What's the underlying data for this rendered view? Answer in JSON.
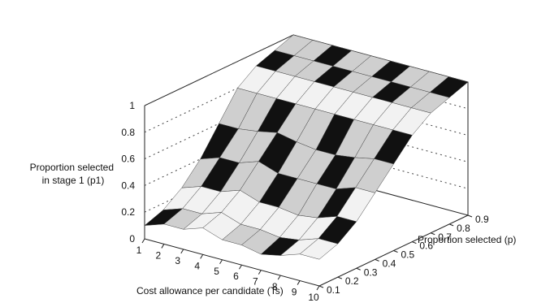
{
  "chart_data": {
    "type": "surface",
    "zlabel": "Proportion selected\nin stage 1 (p1)",
    "xlabel": "Cost allowance per candidate (Ts)",
    "ylabel": "Proportion selected (p)",
    "x_ticks": [
      "1",
      "2",
      "3",
      "4",
      "5",
      "6",
      "7",
      "8",
      "9",
      "10"
    ],
    "y_ticks": [
      "0.1",
      "0.2",
      "0.3",
      "0.4",
      "0.5",
      "0.6",
      "0.7",
      "0.8",
      "0.9"
    ],
    "z_ticks": [
      "0",
      "0.2",
      "0.4",
      "0.6",
      "0.8",
      "1"
    ],
    "x_range": [
      1,
      10
    ],
    "y_range": [
      0.1,
      0.9
    ],
    "z_range": [
      0,
      1
    ],
    "grid": "back-walls-dotted",
    "surface_note": "p1 rises from about 0.1-0.3 at low cost allowance and low p to 1.0 at high p",
    "series": [
      {
        "p": 0.1,
        "p1": [
          0.1,
          0.15,
          0.15,
          0.2,
          0.15,
          0.15,
          0.12,
          0.15,
          0.2,
          0.2
        ]
      },
      {
        "p": 0.2,
        "p1": [
          0.15,
          0.2,
          0.2,
          0.25,
          0.2,
          0.2,
          0.18,
          0.2,
          0.25,
          0.25
        ]
      },
      {
        "p": 0.3,
        "p1": [
          0.25,
          0.3,
          0.3,
          0.35,
          0.3,
          0.3,
          0.28,
          0.3,
          0.35,
          0.35
        ]
      },
      {
        "p": 0.4,
        "p1": [
          0.4,
          0.45,
          0.45,
          0.5,
          0.45,
          0.45,
          0.45,
          0.45,
          0.5,
          0.5
        ]
      },
      {
        "p": 0.5,
        "p1": [
          0.6,
          0.6,
          0.62,
          0.65,
          0.62,
          0.6,
          0.6,
          0.62,
          0.65,
          0.65
        ]
      },
      {
        "p": 0.6,
        "p1": [
          0.8,
          0.8,
          0.8,
          0.8,
          0.8,
          0.8,
          0.8,
          0.8,
          0.8,
          0.8
        ]
      },
      {
        "p": 0.7,
        "p1": [
          0.9,
          0.9,
          0.9,
          0.9,
          0.9,
          0.9,
          0.9,
          0.9,
          0.9,
          0.9
        ]
      },
      {
        "p": 0.8,
        "p1": [
          0.95,
          0.95,
          0.95,
          0.95,
          0.95,
          0.95,
          0.95,
          0.95,
          0.95,
          0.95
        ]
      },
      {
        "p": 0.9,
        "p1": [
          1.0,
          1.0,
          1.0,
          1.0,
          1.0,
          1.0,
          1.0,
          1.0,
          1.0,
          1.0
        ]
      }
    ]
  }
}
